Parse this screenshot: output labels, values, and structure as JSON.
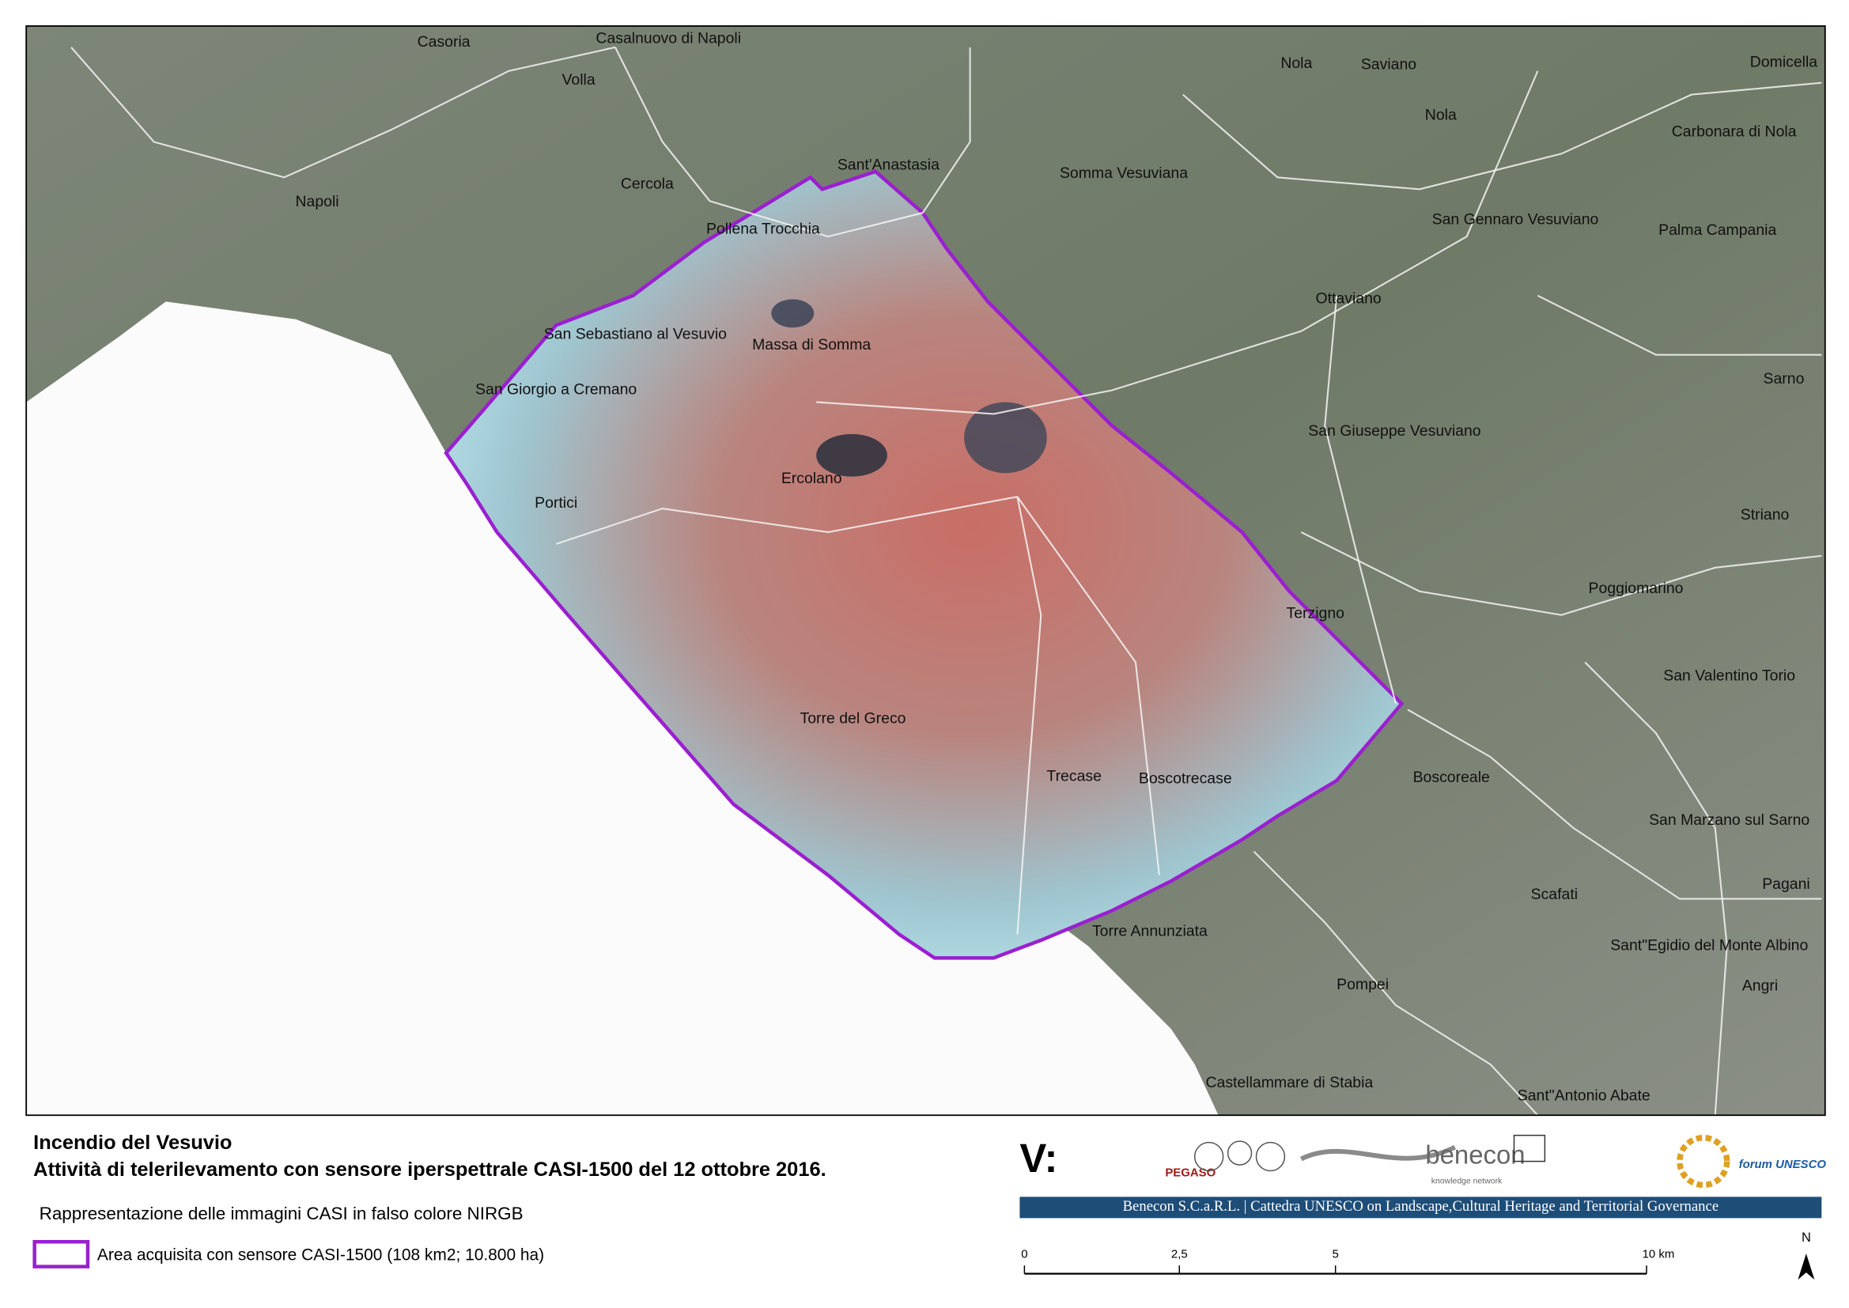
{
  "title": "Incendio del Vesuvio",
  "subtitle": "Attività di telerilevamento con sensore iperspettrale CASI-1500 del 12 ottobre 2016.",
  "description": "Rappresentazione delle immagini CASI in falso colore NIRGB",
  "legend": {
    "label": "Area acquisita con sensore CASI-1500 (108 km2; 10.800 ha)"
  },
  "places": [
    "Casoria",
    "Casalnuovo di Napoli",
    "Volla",
    "Nola",
    "Saviano",
    "Domicella",
    "Nola",
    "Carbonara di Nola",
    "Sant'Anastasia",
    "Somma Vesuviana",
    "Napoli",
    "Cercola",
    "Pollena Trocchia",
    "San Gennaro Vesuviano",
    "Palma Campania",
    "Ottaviano",
    "San Sebastiano al Vesuvio",
    "Massa di Somma",
    "Sarno",
    "San Giorgio a Cremano",
    "San Giuseppe Vesuviano",
    "Ercolano",
    "Portici",
    "Striano",
    "Poggiomarino",
    "Terzigno",
    "San Valentino Torio",
    "Torre del Greco",
    "Trecase",
    "Boscotrecase",
    "Boscoreale",
    "San Marzano sul Sarno",
    "Pagani",
    "Scafati",
    "Torre Annunziata",
    "Sant\"Egidio del Monte Albino",
    "Pompei",
    "Angri",
    "Castellammare di Stabia",
    "Sant\"Antonio Abate"
  ],
  "scale_bar": {
    "ticks": [
      "0",
      "2,5",
      "5",
      "10 km"
    ]
  },
  "north": "N",
  "logos": {
    "banner": "Benecon S.C.a.R.L. | Cattedra UNESCO on Landscape,Cultural Heritage and Territorial Governance",
    "benecon": "benecon",
    "benecon_sub": "knowledge network",
    "pegaso": "PEGASO",
    "forum": "forum UNESCO"
  }
}
